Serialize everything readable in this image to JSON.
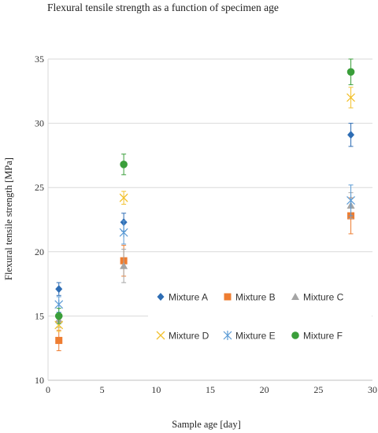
{
  "chart_data": {
    "type": "scatter",
    "title": "Flexural tensile strength as a function of specimen age",
    "xlabel": "Sample age [day]",
    "ylabel": "Flexural tensile strength [MPa]",
    "xlim": [
      0,
      30
    ],
    "ylim": [
      10,
      35
    ],
    "xticks": [
      "0",
      "5",
      "10",
      "15",
      "20",
      "25",
      "30"
    ],
    "yticks": [
      "10",
      "15",
      "20",
      "25",
      "30",
      "35"
    ],
    "grid": "horizontal",
    "legend_position": "center-inside",
    "series": [
      {
        "name": "Mixture A",
        "color": "#2e6db4",
        "marker": "diamond",
        "points": [
          {
            "x": 1,
            "y": 17.1,
            "err": 0.5
          },
          {
            "x": 7,
            "y": 22.3,
            "err": 0.7
          },
          {
            "x": 28,
            "y": 29.1,
            "err": 0.9
          }
        ]
      },
      {
        "name": "Mixture B",
        "color": "#ee7d31",
        "marker": "square",
        "points": [
          {
            "x": 1,
            "y": 13.1,
            "err": 0.8
          },
          {
            "x": 7,
            "y": 19.3,
            "err": 1.2
          },
          {
            "x": 28,
            "y": 22.8,
            "err": 1.4
          }
        ]
      },
      {
        "name": "Mixture C",
        "color": "#a5a5a5",
        "marker": "triangle",
        "points": [
          {
            "x": 1,
            "y": 14.7,
            "err": 0.6
          },
          {
            "x": 7,
            "y": 18.9,
            "err": 1.3
          },
          {
            "x": 28,
            "y": 23.6,
            "err": 1.0
          }
        ]
      },
      {
        "name": "Mixture D",
        "color": "#f2c12e",
        "marker": "x",
        "points": [
          {
            "x": 1,
            "y": 14.3,
            "err": 0.5
          },
          {
            "x": 7,
            "y": 24.2,
            "err": 0.5
          },
          {
            "x": 28,
            "y": 32.0,
            "err": 0.8
          }
        ]
      },
      {
        "name": "Mixture E",
        "color": "#5b9bd5",
        "marker": "star",
        "points": [
          {
            "x": 1,
            "y": 15.9,
            "err": 0.6
          },
          {
            "x": 7,
            "y": 21.5,
            "err": 0.9
          },
          {
            "x": 28,
            "y": 24.0,
            "err": 1.2
          }
        ]
      },
      {
        "name": "Mixture F",
        "color": "#3a9e3a",
        "marker": "circle",
        "points": [
          {
            "x": 1,
            "y": 15.0,
            "err": 0.6
          },
          {
            "x": 7,
            "y": 26.8,
            "err": 0.8
          },
          {
            "x": 28,
            "y": 34.0,
            "err": 1.0
          }
        ]
      }
    ]
  }
}
